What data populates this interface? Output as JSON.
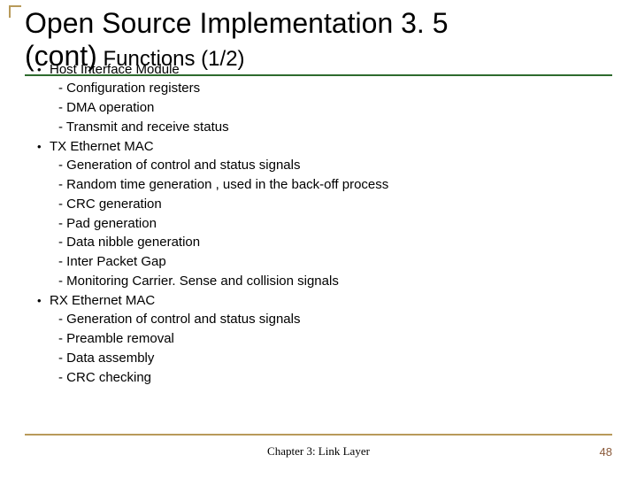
{
  "title_line1": "Open Source Implementation 3. 5",
  "title_line2_a": "(cont)",
  "title_line2_b": " Functions (1/2)",
  "bullets": [
    {
      "type": "main",
      "text": "Host Interface Module"
    },
    {
      "type": "sub",
      "text": "- Configuration registers"
    },
    {
      "type": "sub",
      "text": "- DMA operation"
    },
    {
      "type": "sub",
      "text": "- Transmit and receive status"
    },
    {
      "type": "main",
      "text": "TX Ethernet MAC"
    },
    {
      "type": "sub",
      "text": "- Generation of control and status signals"
    },
    {
      "type": "sub",
      "text": "- Random time generation , used in the back-off process"
    },
    {
      "type": "sub",
      "text": "- CRC generation"
    },
    {
      "type": "sub",
      "text": "- Pad generation"
    },
    {
      "type": "sub",
      "text": "- Data nibble generation"
    },
    {
      "type": "sub",
      "text": "- Inter Packet Gap"
    },
    {
      "type": "sub",
      "text": "- Monitoring Carrier. Sense and collision signals"
    },
    {
      "type": "main",
      "text": "RX Ethernet MAC"
    },
    {
      "type": "sub",
      "text": "- Generation of control and status signals"
    },
    {
      "type": "sub",
      "text": "- Preamble removal"
    },
    {
      "type": "sub",
      "text": "- Data assembly"
    },
    {
      "type": "sub",
      "text": "- CRC checking"
    }
  ],
  "footer": "Chapter 3: Link Layer",
  "page_number": "48",
  "colors": {
    "title_underline": "#2e6b2e",
    "decoration": "#b89a5a",
    "page_num": "#8a5a3a",
    "text": "#000000",
    "bg": "#ffffff"
  }
}
